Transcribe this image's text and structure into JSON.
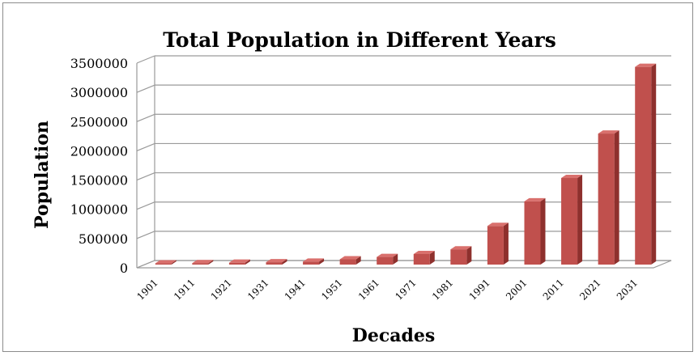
{
  "chart_data": {
    "type": "bar",
    "title": "Total Population in Different Years",
    "xlabel": "Decades",
    "ylabel": "Population",
    "categories": [
      "1901",
      "1911",
      "1921",
      "1931",
      "1941",
      "1951",
      "1961",
      "1971",
      "1981",
      "1991",
      "2001",
      "2011",
      "2021",
      "2031"
    ],
    "series": [
      {
        "values": [
          20000,
          25000,
          32000,
          40000,
          50000,
          90000,
          130000,
          180000,
          260000,
          660000,
          1080000,
          1480000,
          2240000,
          3380000
        ]
      }
    ],
    "yticks": [
      "0",
      "500000",
      "1000000",
      "1500000",
      "2000000",
      "2500000",
      "3000000",
      "3500000"
    ],
    "ylim": [
      0,
      3500000
    ],
    "grid": true,
    "style": "3d-column",
    "colors": {
      "bar_front": "#c0504d",
      "bar_side": "#8e302d",
      "bar_top": "#d9706d",
      "grid": "#9a9a9a"
    }
  }
}
